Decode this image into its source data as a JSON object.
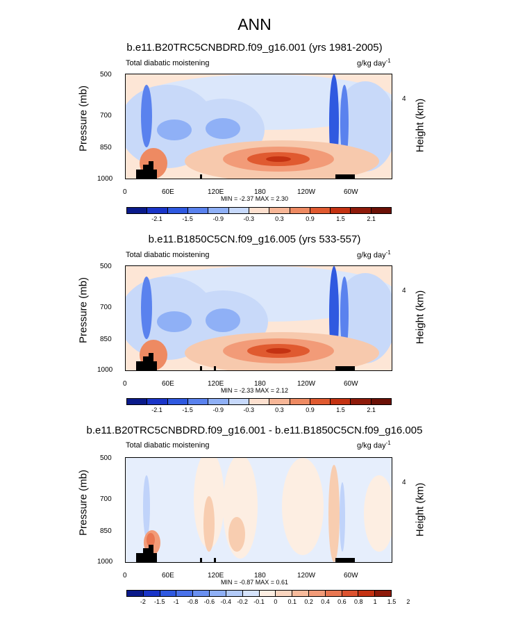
{
  "title": "ANN",
  "panels": [
    {
      "title": "b.e11.B20TRC5CNBDRD.f09_g16.001 (yrs 1981-2005)",
      "left_label": "Total diabatic moistening",
      "units_base": "g/kg day",
      "units_exp": "-1",
      "min_max": "MIN = -2.37 MAX = 2.30",
      "colorbar_labels": [
        "-2.1",
        "-1.5",
        "-0.9",
        "-0.3",
        "0.3",
        "0.9",
        "1.5",
        "2.1"
      ]
    },
    {
      "title": "b.e11.B1850C5CN.f09_g16.005 (yrs 533-557)",
      "left_label": "Total diabatic moistening",
      "units_base": "g/kg day",
      "units_exp": "-1",
      "min_max": "MIN = -2.33 MAX = 2.12",
      "colorbar_labels": [
        "-2.1",
        "-1.5",
        "-0.9",
        "-0.3",
        "0.3",
        "0.9",
        "1.5",
        "2.1"
      ]
    },
    {
      "title": "b.e11.B20TRC5CNBDRD.f09_g16.001 - b.e11.B1850C5CN.f09_g16.005",
      "left_label": "Total diabatic moistening",
      "units_base": "g/kg day",
      "units_exp": "-1",
      "min_max": "MIN = -0.87 MAX = 0.61",
      "colorbar_labels": [
        "-2",
        "-1.5",
        "-1",
        "-0.8",
        "-0.6",
        "-0.4",
        "-0.2",
        "-0.1",
        "0",
        "0.1",
        "0.2",
        "0.4",
        "0.6",
        "0.8",
        "1",
        "1.5",
        "2"
      ]
    }
  ],
  "axes": {
    "ylabel": "Pressure (mb)",
    "y2label": "Height (km)",
    "y_ticks": [
      "500",
      "700",
      "850",
      "1000"
    ],
    "y2_ticks": [
      "4"
    ],
    "x_ticks": [
      "0",
      "60E",
      "120E",
      "180",
      "120W",
      "60W"
    ]
  },
  "colors": {
    "panel_colorbar": [
      "#0a1a8a",
      "#1a35c8",
      "#2f59e0",
      "#5a82ee",
      "#8fb0f6",
      "#c7d9fb",
      "#fde0cf",
      "#f7b697",
      "#ee8a62",
      "#e05a30",
      "#c43212",
      "#8e1a0a",
      "#6b1006"
    ],
    "diff_colorbar": [
      "#0a1a8a",
      "#1a35c8",
      "#2f59e0",
      "#4a72ea",
      "#6a90f0",
      "#8fb0f6",
      "#b3cbf9",
      "#d5e3fc",
      "#fdeee2",
      "#fbd6c0",
      "#f8bb9c",
      "#f29b78",
      "#e97752",
      "#dd5330",
      "#c43212",
      "#8e1a0a"
    ]
  },
  "chart_data": [
    {
      "type": "heatmap",
      "title": "b.e11.B20TRC5CNBDRD.f09_g16.001 (yrs 1981-2005)",
      "variable": "Total diabatic moistening",
      "units": "g/kg day-1",
      "x_ticks": [
        "0",
        "60E",
        "120E",
        "180",
        "120W",
        "60W"
      ],
      "xlim_deg_east": [
        0,
        360
      ],
      "ylabel": "Pressure (mb)",
      "y_ticks": [
        500,
        700,
        850,
        1000
      ],
      "ylim": [
        1000,
        500
      ],
      "y2label": "Height (km)",
      "y2_ticks": [
        4
      ],
      "contour_levels": [
        -2.1,
        -1.8,
        -1.5,
        -1.2,
        -0.9,
        -0.6,
        -0.3,
        0.3,
        0.6,
        0.9,
        1.2,
        1.5,
        1.8,
        2.1
      ],
      "min": -2.37,
      "max": 2.3,
      "features": [
        {
          "description": "strong positive moistening maximum near surface",
          "lon": 205,
          "pressure": 880,
          "value": 1.8
        },
        {
          "description": "drying band",
          "lon": 25,
          "pressure": 720,
          "value": -1.2
        },
        {
          "description": "drying band",
          "lon": 285,
          "pressure": 720,
          "value": -1.5
        }
      ]
    },
    {
      "type": "heatmap",
      "title": "b.e11.B1850C5CN.f09_g16.005 (yrs 533-557)",
      "variable": "Total diabatic moistening",
      "units": "g/kg day-1",
      "x_ticks": [
        "0",
        "60E",
        "120E",
        "180",
        "120W",
        "60W"
      ],
      "xlim_deg_east": [
        0,
        360
      ],
      "ylabel": "Pressure (mb)",
      "y_ticks": [
        500,
        700,
        850,
        1000
      ],
      "ylim": [
        1000,
        500
      ],
      "y2label": "Height (km)",
      "y2_ticks": [
        4
      ],
      "contour_levels": [
        -2.1,
        -1.8,
        -1.5,
        -1.2,
        -0.9,
        -0.6,
        -0.3,
        0.3,
        0.6,
        0.9,
        1.2,
        1.5,
        1.8,
        2.1
      ],
      "min": -2.33,
      "max": 2.12,
      "features": [
        {
          "description": "strong positive moistening maximum near surface",
          "lon": 205,
          "pressure": 880,
          "value": 1.7
        },
        {
          "description": "drying band",
          "lon": 25,
          "pressure": 720,
          "value": -1.2
        },
        {
          "description": "drying band",
          "lon": 285,
          "pressure": 720,
          "value": -1.5
        }
      ]
    },
    {
      "type": "heatmap",
      "title": "b.e11.B20TRC5CNBDRD.f09_g16.001 - b.e11.B1850C5CN.f09_g16.005",
      "variable": "Total diabatic moistening",
      "units": "g/kg day-1",
      "x_ticks": [
        "0",
        "60E",
        "120E",
        "180",
        "120W",
        "60W"
      ],
      "xlim_deg_east": [
        0,
        360
      ],
      "ylabel": "Pressure (mb)",
      "y_ticks": [
        500,
        700,
        850,
        1000
      ],
      "ylim": [
        1000,
        500
      ],
      "y2label": "Height (km)",
      "y2_ticks": [
        4
      ],
      "contour_levels": [
        -2,
        -1.5,
        -1,
        -0.8,
        -0.6,
        -0.4,
        -0.2,
        -0.1,
        0,
        0.1,
        0.2,
        0.4,
        0.6,
        0.8,
        1,
        1.5,
        2
      ],
      "min": -0.87,
      "max": 0.61
    }
  ]
}
